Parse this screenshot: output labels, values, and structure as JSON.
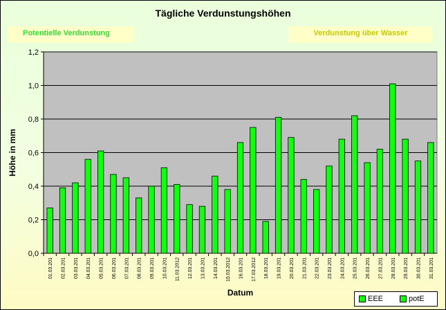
{
  "colors": {
    "bar": "#11ff11",
    "plot_bg": "#c0c0c0",
    "grid": "#000000",
    "tab_bg": "#ffffc8",
    "tab_left_text": "#33dd33",
    "tab_right_text": "#c8c800"
  },
  "tabs": {
    "left": "Potentielle Verdunstung",
    "right": "Verdunstung über Wasser"
  },
  "legend": [
    {
      "label": "EEE"
    },
    {
      "label": "potE"
    }
  ],
  "chart_data": {
    "type": "bar",
    "title": "Tägliche Verdunstungshöhen",
    "xlabel": "Datum",
    "ylabel": "Höhe in mm",
    "ylim": [
      0,
      1.2
    ],
    "yticks": [
      "0,0",
      "0,2",
      "0,4",
      "0,6",
      "0,8",
      "1,0",
      "1,2"
    ],
    "grid": true,
    "legend_position": "bottom-right",
    "categories": [
      "01.03.201",
      "02.03.201",
      "03.03.201",
      "04.03.201",
      "05.03.201",
      "06.03.201",
      "07.03.201",
      "08.03.201",
      "09.03.201",
      "10.03.201",
      "11.03.2012",
      "12.03.201",
      "13.03.201",
      "14.03.201",
      "15.03.2012",
      "16.03.201",
      "17.03.2012",
      "18.03.201",
      "19.03.201",
      "20.03.201",
      "21.03.201",
      "22.03.201",
      "23.03.201",
      "24.03.201",
      "25.03.201",
      "26.03.201",
      "27.03.201",
      "28.03.201",
      "29.03.201",
      "30.03.201",
      "31.03.201"
    ],
    "series": [
      {
        "name": "potE",
        "values": [
          0.27,
          0.39,
          0.42,
          0.56,
          0.61,
          0.47,
          0.45,
          0.33,
          0.4,
          0.51,
          0.41,
          0.29,
          0.28,
          0.46,
          0.38,
          0.66,
          0.75,
          0.19,
          0.81,
          0.69,
          0.44,
          0.38,
          0.52,
          0.68,
          0.82,
          0.54,
          0.62,
          1.01,
          0.68,
          0.55,
          0.66
        ]
      }
    ]
  }
}
